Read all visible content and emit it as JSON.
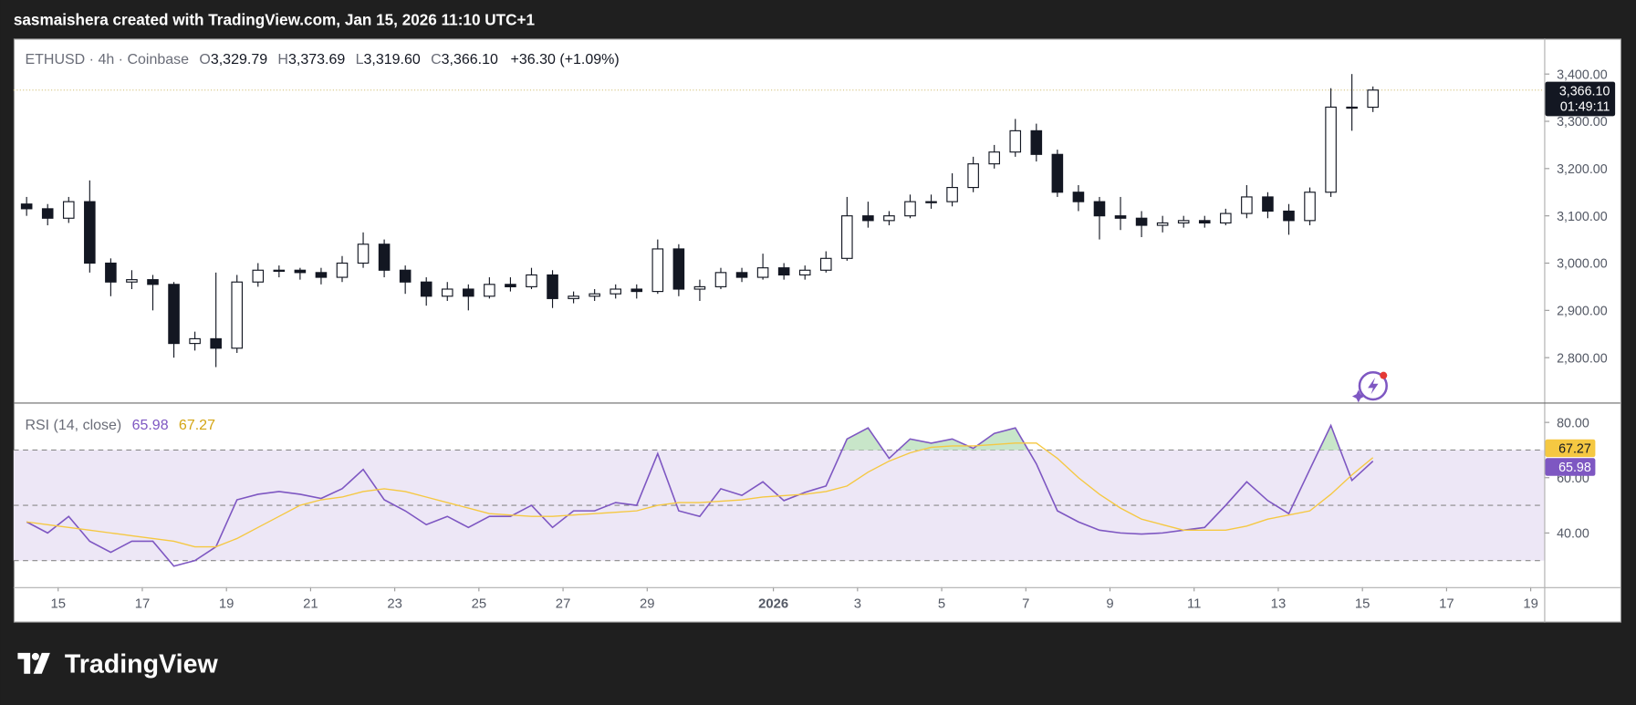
{
  "header": {
    "attribution": "sasmaishera created with TradingView.com, Jan 15, 2026 11:10 UTC+1"
  },
  "footer": {
    "logo_text": "TradingView"
  },
  "chart_data": [
    {
      "type": "candlestick",
      "title": "ETHUSD · 4h · Coinbase",
      "legend_items": [
        {
          "key": "O",
          "label": "3,329.79"
        },
        {
          "key": "H",
          "label": "3,373.69"
        },
        {
          "key": "L",
          "label": "3,319.60"
        },
        {
          "key": "C",
          "label": "3,366.10"
        }
      ],
      "change_label": "+36.30 (+1.09%)",
      "last_price_label": "3,366.10",
      "countdown": "01:49:11",
      "up_color": "#ffffff",
      "down_color": "#131722",
      "outline_color": "#131722",
      "last_price_line_color": "#d9c98a",
      "x": [
        14.25,
        14.75,
        15.25,
        15.75,
        16.25,
        16.75,
        17.25,
        17.75,
        18.25,
        18.75,
        19.25,
        19.75,
        20.25,
        20.75,
        21.25,
        21.75,
        22.25,
        22.75,
        23.25,
        23.75,
        24.25,
        24.75,
        25.25,
        25.75,
        26.25,
        26.75,
        27.25,
        27.75,
        28.25,
        28.75,
        29.25,
        29.75,
        30.25,
        30.75,
        31.25,
        31.75,
        32.25,
        32.75,
        33.25,
        33.75,
        34.25,
        34.75,
        35.25,
        35.75,
        36.25,
        36.75,
        37.25,
        37.75,
        38.25,
        38.75,
        39.25,
        39.75,
        40.25,
        40.75,
        41.25,
        41.75,
        42.25,
        42.75,
        43.25,
        43.75,
        44.25,
        44.75,
        45.25,
        45.75,
        46.25
      ],
      "open": [
        3125,
        3115,
        3095,
        3130,
        3000,
        2960,
        2965,
        2955,
        2830,
        2840,
        2820,
        2960,
        2985,
        2985,
        2980,
        2970,
        3000,
        3040,
        2985,
        2960,
        2930,
        2945,
        2930,
        2955,
        2950,
        2975,
        2925,
        2930,
        2935,
        2945,
        2940,
        3030,
        2945,
        2950,
        2980,
        2970,
        2990,
        2975,
        2985,
        3010,
        3100,
        3090,
        3100,
        3130,
        3130,
        3160,
        3210,
        3235,
        3280,
        3230,
        3150,
        3130,
        3100,
        3095,
        3080,
        3085,
        3090,
        3085,
        3105,
        3140,
        3110,
        3090,
        3150,
        3330,
        3329.79
      ],
      "high": [
        3140,
        3125,
        3140,
        3175,
        3010,
        2985,
        2975,
        2960,
        2855,
        2980,
        2975,
        3000,
        2995,
        2990,
        2990,
        3015,
        3065,
        3050,
        2995,
        2970,
        2960,
        2955,
        2970,
        2970,
        2990,
        2985,
        2940,
        2945,
        2955,
        2955,
        3050,
        3040,
        2965,
        2990,
        2990,
        3020,
        3000,
        2995,
        3025,
        3140,
        3130,
        3110,
        3145,
        3145,
        3190,
        3225,
        3250,
        3305,
        3295,
        3240,
        3165,
        3140,
        3140,
        3110,
        3100,
        3100,
        3100,
        3115,
        3165,
        3150,
        3125,
        3160,
        3370,
        3400,
        3373.69
      ],
      "low": [
        3100,
        3080,
        3085,
        2980,
        2930,
        2945,
        2900,
        2800,
        2815,
        2780,
        2810,
        2950,
        2970,
        2965,
        2955,
        2960,
        2990,
        2970,
        2935,
        2910,
        2920,
        2900,
        2925,
        2940,
        2945,
        2905,
        2915,
        2920,
        2925,
        2925,
        2935,
        2930,
        2920,
        2945,
        2960,
        2965,
        2965,
        2965,
        2980,
        3005,
        3075,
        3080,
        3095,
        3115,
        3120,
        3150,
        3200,
        3225,
        3215,
        3140,
        3110,
        3050,
        3070,
        3055,
        3065,
        3075,
        3075,
        3080,
        3095,
        3095,
        3060,
        3080,
        3140,
        3280,
        3319.6
      ],
      "close": [
        3115,
        3095,
        3130,
        3000,
        2960,
        2965,
        2955,
        2830,
        2840,
        2820,
        2960,
        2985,
        2985,
        2980,
        2970,
        3000,
        3040,
        2985,
        2960,
        2930,
        2945,
        2930,
        2955,
        2950,
        2975,
        2925,
        2930,
        2935,
        2945,
        2940,
        3030,
        2945,
        2950,
        2980,
        2970,
        2990,
        2975,
        2985,
        3010,
        3100,
        3090,
        3100,
        3130,
        3130,
        3160,
        3210,
        3235,
        3280,
        3230,
        3150,
        3130,
        3100,
        3095,
        3080,
        3085,
        3090,
        3085,
        3105,
        3140,
        3110,
        3090,
        3150,
        3330,
        3329.79,
        3366.1
      ],
      "xlim": [
        13.94,
        50.32
      ],
      "ylim": [
        2705,
        3475
      ],
      "yticks": [
        {
          "value": 2800,
          "label": "2,800.00"
        },
        {
          "value": 2900,
          "label": "2,900.00"
        },
        {
          "value": 3000,
          "label": "3,000.00"
        },
        {
          "value": 3100,
          "label": "3,100.00"
        },
        {
          "value": 3200,
          "label": "3,200.00"
        },
        {
          "value": 3300,
          "label": "3,300.00"
        },
        {
          "value": 3400,
          "label": "3,400.00"
        }
      ]
    },
    {
      "type": "line",
      "title": "RSI (14, close)",
      "x": [
        14.25,
        14.75,
        15.25,
        15.75,
        16.25,
        16.75,
        17.25,
        17.75,
        18.25,
        18.75,
        19.25,
        19.75,
        20.25,
        20.75,
        21.25,
        21.75,
        22.25,
        22.75,
        23.25,
        23.75,
        24.25,
        24.75,
        25.25,
        25.75,
        26.25,
        26.75,
        27.25,
        27.75,
        28.25,
        28.75,
        29.25,
        29.75,
        30.25,
        30.75,
        31.25,
        31.75,
        32.25,
        32.75,
        33.25,
        33.75,
        34.25,
        34.75,
        35.25,
        35.75,
        36.25,
        36.75,
        37.25,
        37.75,
        38.25,
        38.75,
        39.25,
        39.75,
        40.25,
        40.75,
        41.25,
        41.75,
        42.25,
        42.75,
        43.25,
        43.75,
        44.25,
        44.75,
        45.25,
        45.75,
        46.25
      ],
      "series": [
        {
          "color": "#7e57c2",
          "label_text_color": "#ffffff",
          "last_label": "65.98",
          "values": [
            44,
            40,
            46,
            37,
            33,
            37,
            37,
            28,
            30,
            35,
            52,
            54,
            55,
            54,
            52.5,
            56,
            63,
            52,
            48,
            43,
            46,
            42,
            46,
            46,
            50,
            42,
            48,
            48,
            51,
            50,
            68.7,
            48,
            46,
            56,
            53.6,
            58.5,
            51.7,
            54.7,
            57,
            74,
            78,
            67,
            74,
            72.5,
            74,
            70.6,
            76,
            78,
            65,
            48,
            44,
            41,
            40,
            39.6,
            40,
            41,
            42,
            50,
            58.5,
            51.7,
            47,
            63,
            78.9,
            59,
            65.98
          ]
        },
        {
          "color": "#f5c842",
          "label_text_color": "#131722",
          "last_label": "67.27",
          "values": [
            44,
            43,
            42,
            41,
            40,
            39,
            38,
            37,
            35,
            35,
            38,
            42,
            46,
            50,
            52,
            53,
            55,
            56,
            55,
            53,
            51,
            49,
            47,
            46.5,
            46,
            46,
            46.5,
            47,
            47.5,
            48,
            50,
            51,
            51,
            51.5,
            52,
            53,
            53.5,
            54,
            55,
            57,
            62,
            66,
            69,
            71,
            71.5,
            71.5,
            72,
            72.5,
            72.5,
            67,
            60,
            54,
            49,
            45,
            43,
            41,
            41,
            41,
            42.5,
            45,
            46.5,
            48,
            54,
            61,
            67.27
          ]
        }
      ],
      "levels": [
        70,
        50,
        30
      ],
      "band_color": "#ede7f6",
      "overbought_color": "#c8e6c9",
      "xlim": [
        13.94,
        50.32
      ],
      "xticks": [
        15,
        17,
        19,
        21,
        23,
        25,
        27,
        29,
        {
          "value": 32,
          "label": "2026"
        },
        {
          "value": 34,
          "label": "3"
        },
        {
          "value": 36,
          "label": "5"
        },
        {
          "value": 38,
          "label": "7"
        },
        {
          "value": 40,
          "label": "9"
        },
        {
          "value": 42,
          "label": "11"
        },
        {
          "value": 44,
          "label": "13"
        },
        {
          "value": 46,
          "label": "15"
        },
        {
          "value": 48,
          "label": "17"
        },
        {
          "value": 50,
          "label": "19"
        }
      ],
      "ylim": [
        20.4,
        86.8
      ],
      "yticks": [
        {
          "value": 40,
          "label": "40.00"
        },
        {
          "value": 60,
          "label": "60.00"
        },
        {
          "value": 80,
          "label": "80.00"
        }
      ]
    }
  ]
}
